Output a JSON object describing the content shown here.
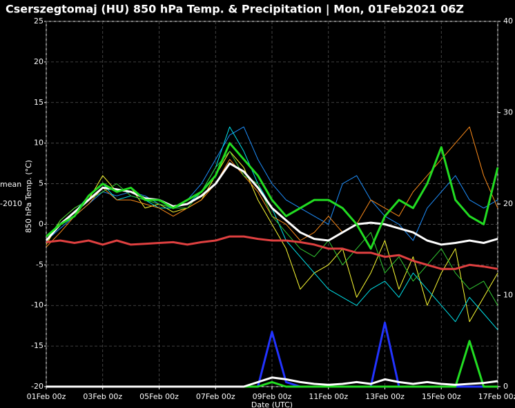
{
  "chart_data": {
    "type": "line",
    "title": "Cserszegtomaj  (HU)  850 hPa Temp. & Precipitation | Mon, 01Feb2021 06Z",
    "y_label": "850 hPa Temp. (°C)",
    "x_label": "Date (UTC)",
    "legend_fragments": [
      "mean",
      "-2010"
    ],
    "grid": true,
    "x": [
      0,
      0.5,
      1,
      1.5,
      2,
      2.5,
      3,
      3.5,
      4,
      4.5,
      5,
      5.5,
      6,
      6.5,
      7,
      7.5,
      8,
      8.5,
      9,
      9.5,
      10,
      10.5,
      11,
      11.5,
      12,
      12.5,
      13,
      13.5,
      14,
      14.5,
      15,
      15.5,
      16
    ],
    "xlim": [
      0,
      16
    ],
    "xticks": [
      {
        "value": 0,
        "label": "01Feb 00z"
      },
      {
        "value": 2,
        "label": "03Feb 00z"
      },
      {
        "value": 4,
        "label": "05Feb 00z"
      },
      {
        "value": 6,
        "label": "07Feb 00z"
      },
      {
        "value": 8,
        "label": "09Feb 00z"
      },
      {
        "value": 10,
        "label": "11Feb 00z"
      },
      {
        "value": 12,
        "label": "13Feb 00z"
      },
      {
        "value": 14,
        "label": "15Feb 00z"
      },
      {
        "value": 16,
        "label": "17Feb 00z"
      }
    ],
    "ylim": [
      -20,
      25
    ],
    "yticks": [
      -20,
      -15,
      -10,
      -5,
      0,
      5,
      10,
      15,
      20,
      25
    ],
    "y2lim": [
      0,
      40
    ],
    "y2ticks": [
      0,
      10,
      20,
      30,
      40
    ],
    "series": [
      {
        "color": "#1e90ff",
        "width": 1,
        "values": [
          -2,
          -0.5,
          1,
          2.5,
          4,
          3.5,
          4,
          3.5,
          2.5,
          2,
          3,
          5,
          8,
          11,
          12,
          8,
          5,
          3,
          2,
          1,
          0,
          5,
          6,
          3,
          1,
          0,
          -2,
          2,
          4,
          6,
          3,
          2,
          3
        ]
      },
      {
        "color": "#ffff33",
        "width": 1,
        "values": [
          -2.5,
          0.5,
          2,
          3,
          6,
          4,
          4.5,
          2,
          2.5,
          1.5,
          2,
          3,
          6,
          9,
          7,
          3,
          0,
          -3,
          -8,
          -6,
          -5,
          -3,
          -9,
          -6,
          -2,
          -8,
          -4,
          -10,
          -6,
          -3,
          -12,
          -9,
          -6
        ]
      },
      {
        "color": "#00e5ee",
        "width": 1,
        "values": [
          -1.5,
          0,
          1.5,
          3.5,
          5,
          3,
          3.5,
          3,
          2,
          2,
          2.5,
          4,
          7,
          12,
          9,
          5,
          2,
          -2,
          -4,
          -6,
          -8,
          -9,
          -10,
          -8,
          -7,
          -9,
          -6,
          -8,
          -10,
          -12,
          -9,
          -11,
          -13
        ]
      },
      {
        "color": "#ff8c1a",
        "width": 1,
        "values": [
          -2.8,
          -1,
          1,
          2.5,
          4.5,
          3,
          3,
          2.5,
          2,
          1,
          2,
          3,
          5,
          8,
          6,
          4,
          1,
          0,
          -2,
          -1,
          1,
          -1,
          0,
          3,
          2,
          1,
          4,
          6,
          8,
          10,
          12,
          6,
          2
        ]
      },
      {
        "color": "#33cc33",
        "width": 1,
        "values": [
          -2,
          0.5,
          2,
          3,
          4,
          5,
          3.5,
          3,
          2.5,
          2,
          2,
          4,
          7,
          9,
          6,
          5,
          1,
          -1,
          -3,
          -4,
          -2,
          -5,
          -3,
          -1,
          -6,
          -4,
          -7,
          -5,
          -3,
          -6,
          -8,
          -7,
          -10
        ]
      },
      {
        "name": "mean",
        "color": "#ffffff",
        "width": 3,
        "values": [
          -2,
          0,
          1.5,
          3,
          4.5,
          4.3,
          4,
          3.2,
          3,
          2.2,
          2.5,
          3.5,
          5,
          7.5,
          6.5,
          4.5,
          2,
          0.5,
          -1,
          -1.8,
          -2,
          -1,
          0,
          0.2,
          0,
          -0.5,
          -1,
          -2,
          -2.5,
          -2.3,
          -2,
          -2.3,
          -1.8
        ]
      },
      {
        "color": "#e04040",
        "width": 3,
        "values": [
          -2.2,
          -2,
          -2.3,
          -2,
          -2.5,
          -2,
          -2.5,
          -2.4,
          -2.3,
          -2.2,
          -2.5,
          -2.2,
          -2,
          -1.5,
          -1.5,
          -1.8,
          -2,
          -2,
          -2.2,
          -2.5,
          -3,
          -3,
          -3.5,
          -3.5,
          -4,
          -3.8,
          -4.5,
          -5,
          -5.5,
          -5.5,
          -5,
          -5.2,
          -5.5
        ]
      },
      {
        "color": "#22dd22",
        "width": 3,
        "values": [
          -1.5,
          0,
          1,
          3.5,
          5,
          4,
          4.5,
          3,
          3,
          2,
          3,
          4,
          6,
          10,
          8,
          6,
          3,
          1,
          2,
          3,
          3,
          2,
          0,
          -3,
          1,
          3,
          2,
          5,
          9.5,
          3,
          1,
          0,
          7
        ]
      },
      {
        "color": "#2233ff",
        "width": 3,
        "axis": "y2",
        "values": [
          0,
          0,
          0,
          0,
          0,
          0,
          0,
          0,
          0,
          0,
          0,
          0,
          0,
          0,
          0,
          0,
          6,
          0.5,
          0,
          0,
          0,
          0,
          0,
          0,
          7,
          0,
          0,
          0,
          0,
          0,
          0,
          0,
          0
        ]
      },
      {
        "color": "#22dd22",
        "width": 3,
        "axis": "y2",
        "values": [
          0,
          0,
          0,
          0,
          0,
          0,
          0,
          0,
          0,
          0,
          0,
          0,
          0,
          0,
          0,
          0,
          0.5,
          0,
          0,
          0,
          0,
          0,
          0,
          0,
          0,
          0,
          0,
          0,
          0,
          0,
          5,
          0,
          0
        ]
      },
      {
        "color": "#ffffff",
        "width": 3,
        "axis": "y2",
        "values": [
          0,
          0,
          0,
          0,
          0,
          0,
          0,
          0,
          0,
          0,
          0,
          0,
          0,
          0,
          0,
          0.5,
          1,
          0.8,
          0.5,
          0.3,
          0.2,
          0.3,
          0.5,
          0.3,
          0.8,
          0.5,
          0.3,
          0.5,
          0.3,
          0.2,
          0.3,
          0.4,
          0.6
        ]
      }
    ]
  }
}
